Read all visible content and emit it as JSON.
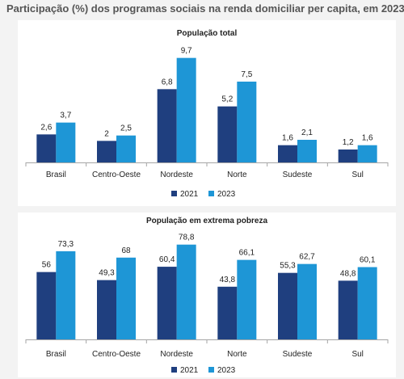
{
  "title": "Participação (%) dos programas sociais na renda domiciliar per capita, em 2023",
  "colors": {
    "s2021": "#1f3f7f",
    "s2023": "#1e96d6"
  },
  "chart_data": [
    {
      "type": "bar",
      "title": "População total",
      "categories": [
        "Brasil",
        "Centro-Oeste",
        "Nordeste",
        "Norte",
        "Sudeste",
        "Sul"
      ],
      "series": [
        {
          "name": "2021",
          "values": [
            2.6,
            2,
            6.8,
            5.2,
            1.6,
            1.2
          ],
          "labels": [
            "2,6",
            "2",
            "6,8",
            "5,2",
            "1,6",
            "1,2"
          ]
        },
        {
          "name": "2023",
          "values": [
            3.7,
            2.5,
            9.7,
            7.5,
            2.1,
            1.6
          ],
          "labels": [
            "3,7",
            "2,5",
            "9,7",
            "7,5",
            "2,1",
            "1,6"
          ]
        }
      ],
      "ylim": [
        0,
        10.8
      ],
      "grid": false,
      "legend": "bottom-center"
    },
    {
      "type": "bar",
      "title": "População em extrema pobreza",
      "categories": [
        "Brasil",
        "Centro-Oeste",
        "Nordeste",
        "Norte",
        "Sudeste",
        "Sul"
      ],
      "series": [
        {
          "name": "2021",
          "values": [
            56,
            49.3,
            60.4,
            43.8,
            55.3,
            48.8
          ],
          "labels": [
            "56",
            "49,3",
            "60,4",
            "43,8",
            "55,3",
            "48,8"
          ]
        },
        {
          "name": "2023",
          "values": [
            73.3,
            68,
            78.8,
            66.1,
            62.7,
            60.1
          ],
          "labels": [
            "73,3",
            "68",
            "78,8",
            "66,1",
            "62,7",
            "60,1"
          ]
        }
      ],
      "ylim": [
        0,
        88
      ],
      "grid": false,
      "legend": "bottom-center"
    }
  ]
}
